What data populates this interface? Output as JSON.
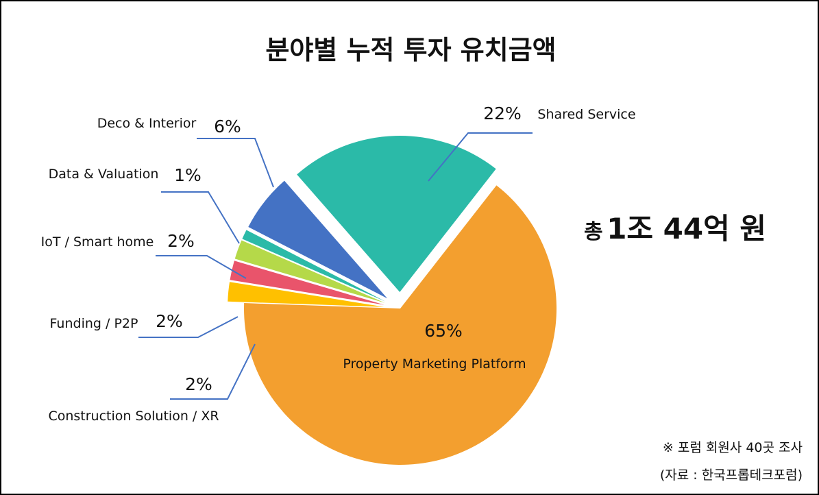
{
  "chart_data": {
    "type": "pie",
    "title": "분야별 누적 투자 유치금액",
    "categories": [
      "Property Marketing Platform",
      "Construction Solution / XR",
      "Funding / P2P",
      "IoT / Smart home",
      "Data & Valuation",
      "Deco & Interior",
      "Shared Service"
    ],
    "values": [
      65,
      2,
      2,
      2,
      1,
      6,
      22
    ],
    "value_labels": [
      "65%",
      "2%",
      "2%",
      "2%",
      "1%",
      "6%",
      "22%"
    ],
    "colors": [
      "#F39F2F",
      "#FFC000",
      "#E9546B",
      "#B5D949",
      "#2BBAA8",
      "#4472C4",
      "#2BBAA8"
    ],
    "exploded": true,
    "legend": "none"
  },
  "annotation": {
    "total_prefix": "총",
    "total_amount": "1조 44억 원"
  },
  "footnote": {
    "line1": "※ 포럼 회원사 40곳 조사",
    "line2": "(자료 : 한국프롭테크포럼)"
  },
  "colors": {
    "leader_line": "#4472C4"
  }
}
